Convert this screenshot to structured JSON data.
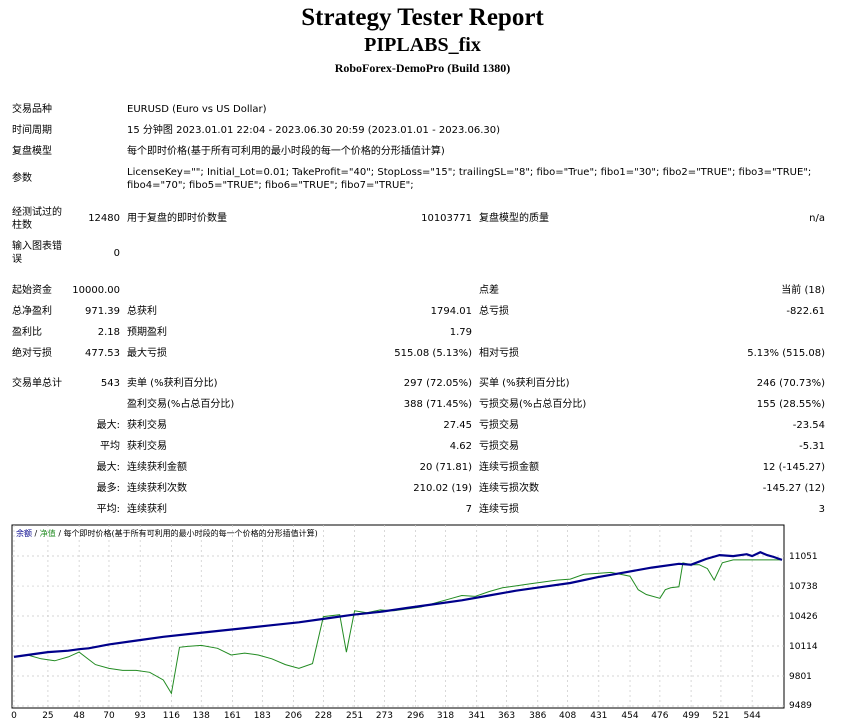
{
  "title": "Strategy Tester Report",
  "ea_name": "PIPLABS_fix",
  "server": "RoboForex-DemoPro (Build 1380)",
  "info": {
    "symbol_label": "交易品种",
    "symbol": "EURUSD (Euro vs US Dollar)",
    "period_label": "时间周期",
    "period": "15 分钟图 2023.01.01 22:04 - 2023.06.30 20:59 (2023.01.01 - 2023.06.30)",
    "model_label": "复盘模型",
    "model": "每个即时价格(基于所有可利用的最小时段的每一个价格的分形插值计算)",
    "params_label": "参数",
    "params_line1": "LicenseKey=\"\"; Initial_Lot=0.01; TakeProfit=\"40\"; StopLoss=\"15\"; trailingSL=\"8\"; fibo=\"True\"; fibo1=\"30\"; fibo2=\"TRUE\"; fibo3=\"TRUE\";",
    "params_line2": "fibo4=\"70\"; fibo5=\"TRUE\"; fibo6=\"TRUE\"; fibo7=\"TRUE\";"
  },
  "stats": {
    "bars_label_1": "经测试过的",
    "bars_label_2": "柱数",
    "bars": "12480",
    "ticks_label": "用于复盘的即时价数量",
    "ticks": "10103771",
    "quality_label": "复盘模型的质量",
    "quality": "n/a",
    "errors_label_1": "输入图表错",
    "errors_label_2": "误",
    "errors": "0",
    "deposit_label": "起始资金",
    "deposit": "10000.00",
    "spread_label": "点差",
    "spread": "当前 (18)",
    "net_label": "总净盈利",
    "net": "971.39",
    "gross_profit_label": "总获利",
    "gross_profit": "1794.01",
    "gross_loss_label": "总亏损",
    "gross_loss": "-822.61",
    "pf_label": "盈利比",
    "pf": "2.18",
    "payoff_label": "预期盈利",
    "payoff": "1.79",
    "abs_dd_label": "绝对亏损",
    "abs_dd": "477.53",
    "max_dd_label": "最大亏损",
    "max_dd": "515.08 (5.13%)",
    "rel_dd_label": "相对亏损",
    "rel_dd": "5.13% (515.08)",
    "trades_label": "交易单总计",
    "trades": "543",
    "short_label": "卖单 (%获利百分比)",
    "short": "297 (72.05%)",
    "long_label": "买单 (%获利百分比)",
    "long": "246 (70.73%)",
    "profit_trades_label": "盈利交易(%占总百分比)",
    "profit_trades": "388 (71.45%)",
    "loss_trades_label": "亏损交易(%占总百分比)",
    "loss_trades": "155 (28.55%)",
    "largest_label": "最大:",
    "largest_profit_label": "获利交易",
    "largest_profit": "27.45",
    "largest_loss_label": "亏损交易",
    "largest_loss": "-23.54",
    "average_label": "平均",
    "average_profit_label": "获利交易",
    "average_profit": "4.62",
    "average_loss_label": "亏损交易",
    "average_loss": "-5.31",
    "maximum_label": "最大:",
    "max_cons_wins_label": "连续获利金额",
    "max_cons_wins": "20 (71.81)",
    "max_cons_losses_label": "连续亏损金额",
    "max_cons_losses": "12 (-145.27)",
    "maximal_label": "最多:",
    "maximal_cons_profit_label": "连续获利次数",
    "maximal_cons_profit": "210.02 (19)",
    "maximal_cons_loss_label": "连续亏损次数",
    "maximal_cons_loss": "-145.27 (12)",
    "avg_cons_label": "平均:",
    "avg_cons_wins_label": "连续获利",
    "avg_cons_wins": "7",
    "avg_cons_losses_label": "连续亏损",
    "avg_cons_losses": "3"
  },
  "chart_data": {
    "type": "line",
    "legend_text": "余额 / 净值 / 每个即时价格(基于所有可利用的最小时段的每一个价格的分形插值计算)",
    "legend_balance": "余额",
    "legend_equity": "净值",
    "legend_rest": "每个即时价格(基于所有可利用的最小时段的每一个价格的分形插值计算)",
    "xlim": [
      0,
      566
    ],
    "ylim": [
      9489,
      11207
    ],
    "x_ticks": [
      0,
      25,
      48,
      70,
      93,
      116,
      138,
      161,
      183,
      206,
      228,
      251,
      273,
      296,
      318,
      341,
      363,
      386,
      408,
      431,
      454,
      476,
      499,
      521,
      544
    ],
    "y_ticks": [
      9489,
      9801,
      10114,
      10426,
      10738,
      11051
    ],
    "colors": {
      "balance": "#00008b",
      "equity": "#228b22",
      "grid": "#c8c8c8"
    },
    "series": [
      {
        "name": "余额",
        "x": [
          0,
          15,
          25,
          40,
          48,
          55,
          70,
          90,
          110,
          130,
          150,
          170,
          190,
          210,
          230,
          250,
          270,
          290,
          310,
          330,
          350,
          370,
          390,
          410,
          430,
          450,
          470,
          490,
          499,
          510,
          520,
          530,
          540,
          544,
          550,
          555,
          560,
          566
        ],
        "y": [
          10000,
          10030,
          10050,
          10065,
          10080,
          10090,
          10130,
          10170,
          10210,
          10240,
          10270,
          10300,
          10330,
          10360,
          10400,
          10440,
          10470,
          10510,
          10550,
          10590,
          10640,
          10690,
          10730,
          10770,
          10830,
          10880,
          10930,
          10970,
          10960,
          11020,
          11060,
          11050,
          11070,
          11050,
          11090,
          11060,
          11040,
          11010
        ]
      },
      {
        "name": "净值",
        "x": [
          0,
          10,
          20,
          30,
          40,
          48,
          60,
          70,
          80,
          90,
          100,
          110,
          116,
          122,
          128,
          138,
          150,
          160,
          170,
          180,
          190,
          200,
          210,
          220,
          228,
          240,
          245,
          251,
          260,
          270,
          280,
          290,
          300,
          310,
          320,
          330,
          340,
          350,
          360,
          370,
          380,
          390,
          400,
          410,
          420,
          430,
          440,
          454,
          460,
          466,
          476,
          480,
          484,
          490,
          493,
          499,
          505,
          511,
          516,
          522,
          530,
          544,
          566
        ],
        "y": [
          10000,
          10020,
          9980,
          9960,
          10000,
          10050,
          9920,
          9880,
          9860,
          9860,
          9840,
          9760,
          9620,
          10100,
          10110,
          10120,
          10090,
          10020,
          10040,
          10020,
          9980,
          9920,
          9880,
          9930,
          10420,
          10440,
          10050,
          10480,
          10460,
          10490,
          10480,
          10500,
          10520,
          10560,
          10600,
          10640,
          10630,
          10680,
          10720,
          10740,
          10760,
          10780,
          10800,
          10810,
          10860,
          10870,
          10880,
          10840,
          10700,
          10650,
          10610,
          10700,
          10720,
          10730,
          10980,
          10960,
          10960,
          10920,
          10800,
          10980,
          11010,
          11010,
          11010
        ]
      }
    ]
  }
}
